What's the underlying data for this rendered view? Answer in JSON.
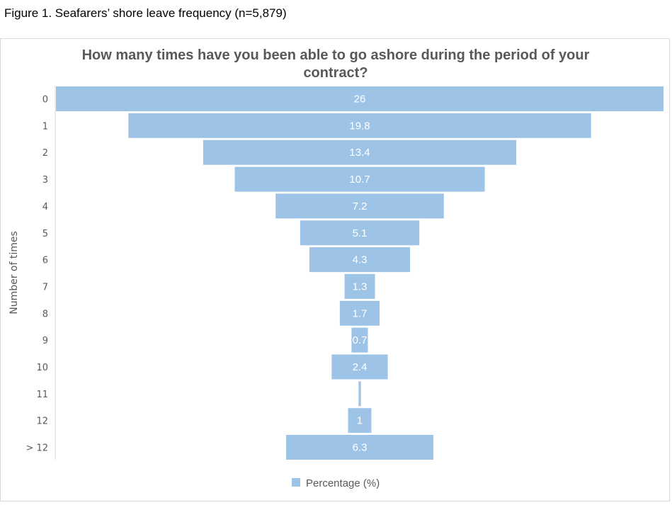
{
  "caption": "Figure 1. Seafarers’ shore leave frequency (n=5,879)",
  "chart_data": {
    "type": "bar",
    "orientation": "horizontal-funnel",
    "title_line1": "How many times have you been able to go ashore during the period of your",
    "title_line2": "contract?",
    "ylabel": "Number of times",
    "categories": [
      "0",
      "1",
      "2",
      "3",
      "4",
      "5",
      "6",
      "7",
      "8",
      "9",
      "10",
      "11",
      "12",
      "> 12"
    ],
    "series": [
      {
        "name": "Percentage (%)",
        "values": [
          26,
          19.8,
          13.4,
          10.7,
          7.2,
          5.1,
          4.3,
          1.3,
          1.7,
          0.7,
          2.4,
          0.1,
          1,
          6.3
        ],
        "labels": [
          "26",
          "19.8",
          "13.4",
          "10.7",
          "7.2",
          "5.1",
          "4.3",
          "1.3",
          "1.7",
          "0.7",
          "2.4",
          "",
          "1",
          "6.3"
        ]
      }
    ],
    "bar_color": "#9dc3e6",
    "legend_position": "bottom",
    "grid": false
  }
}
